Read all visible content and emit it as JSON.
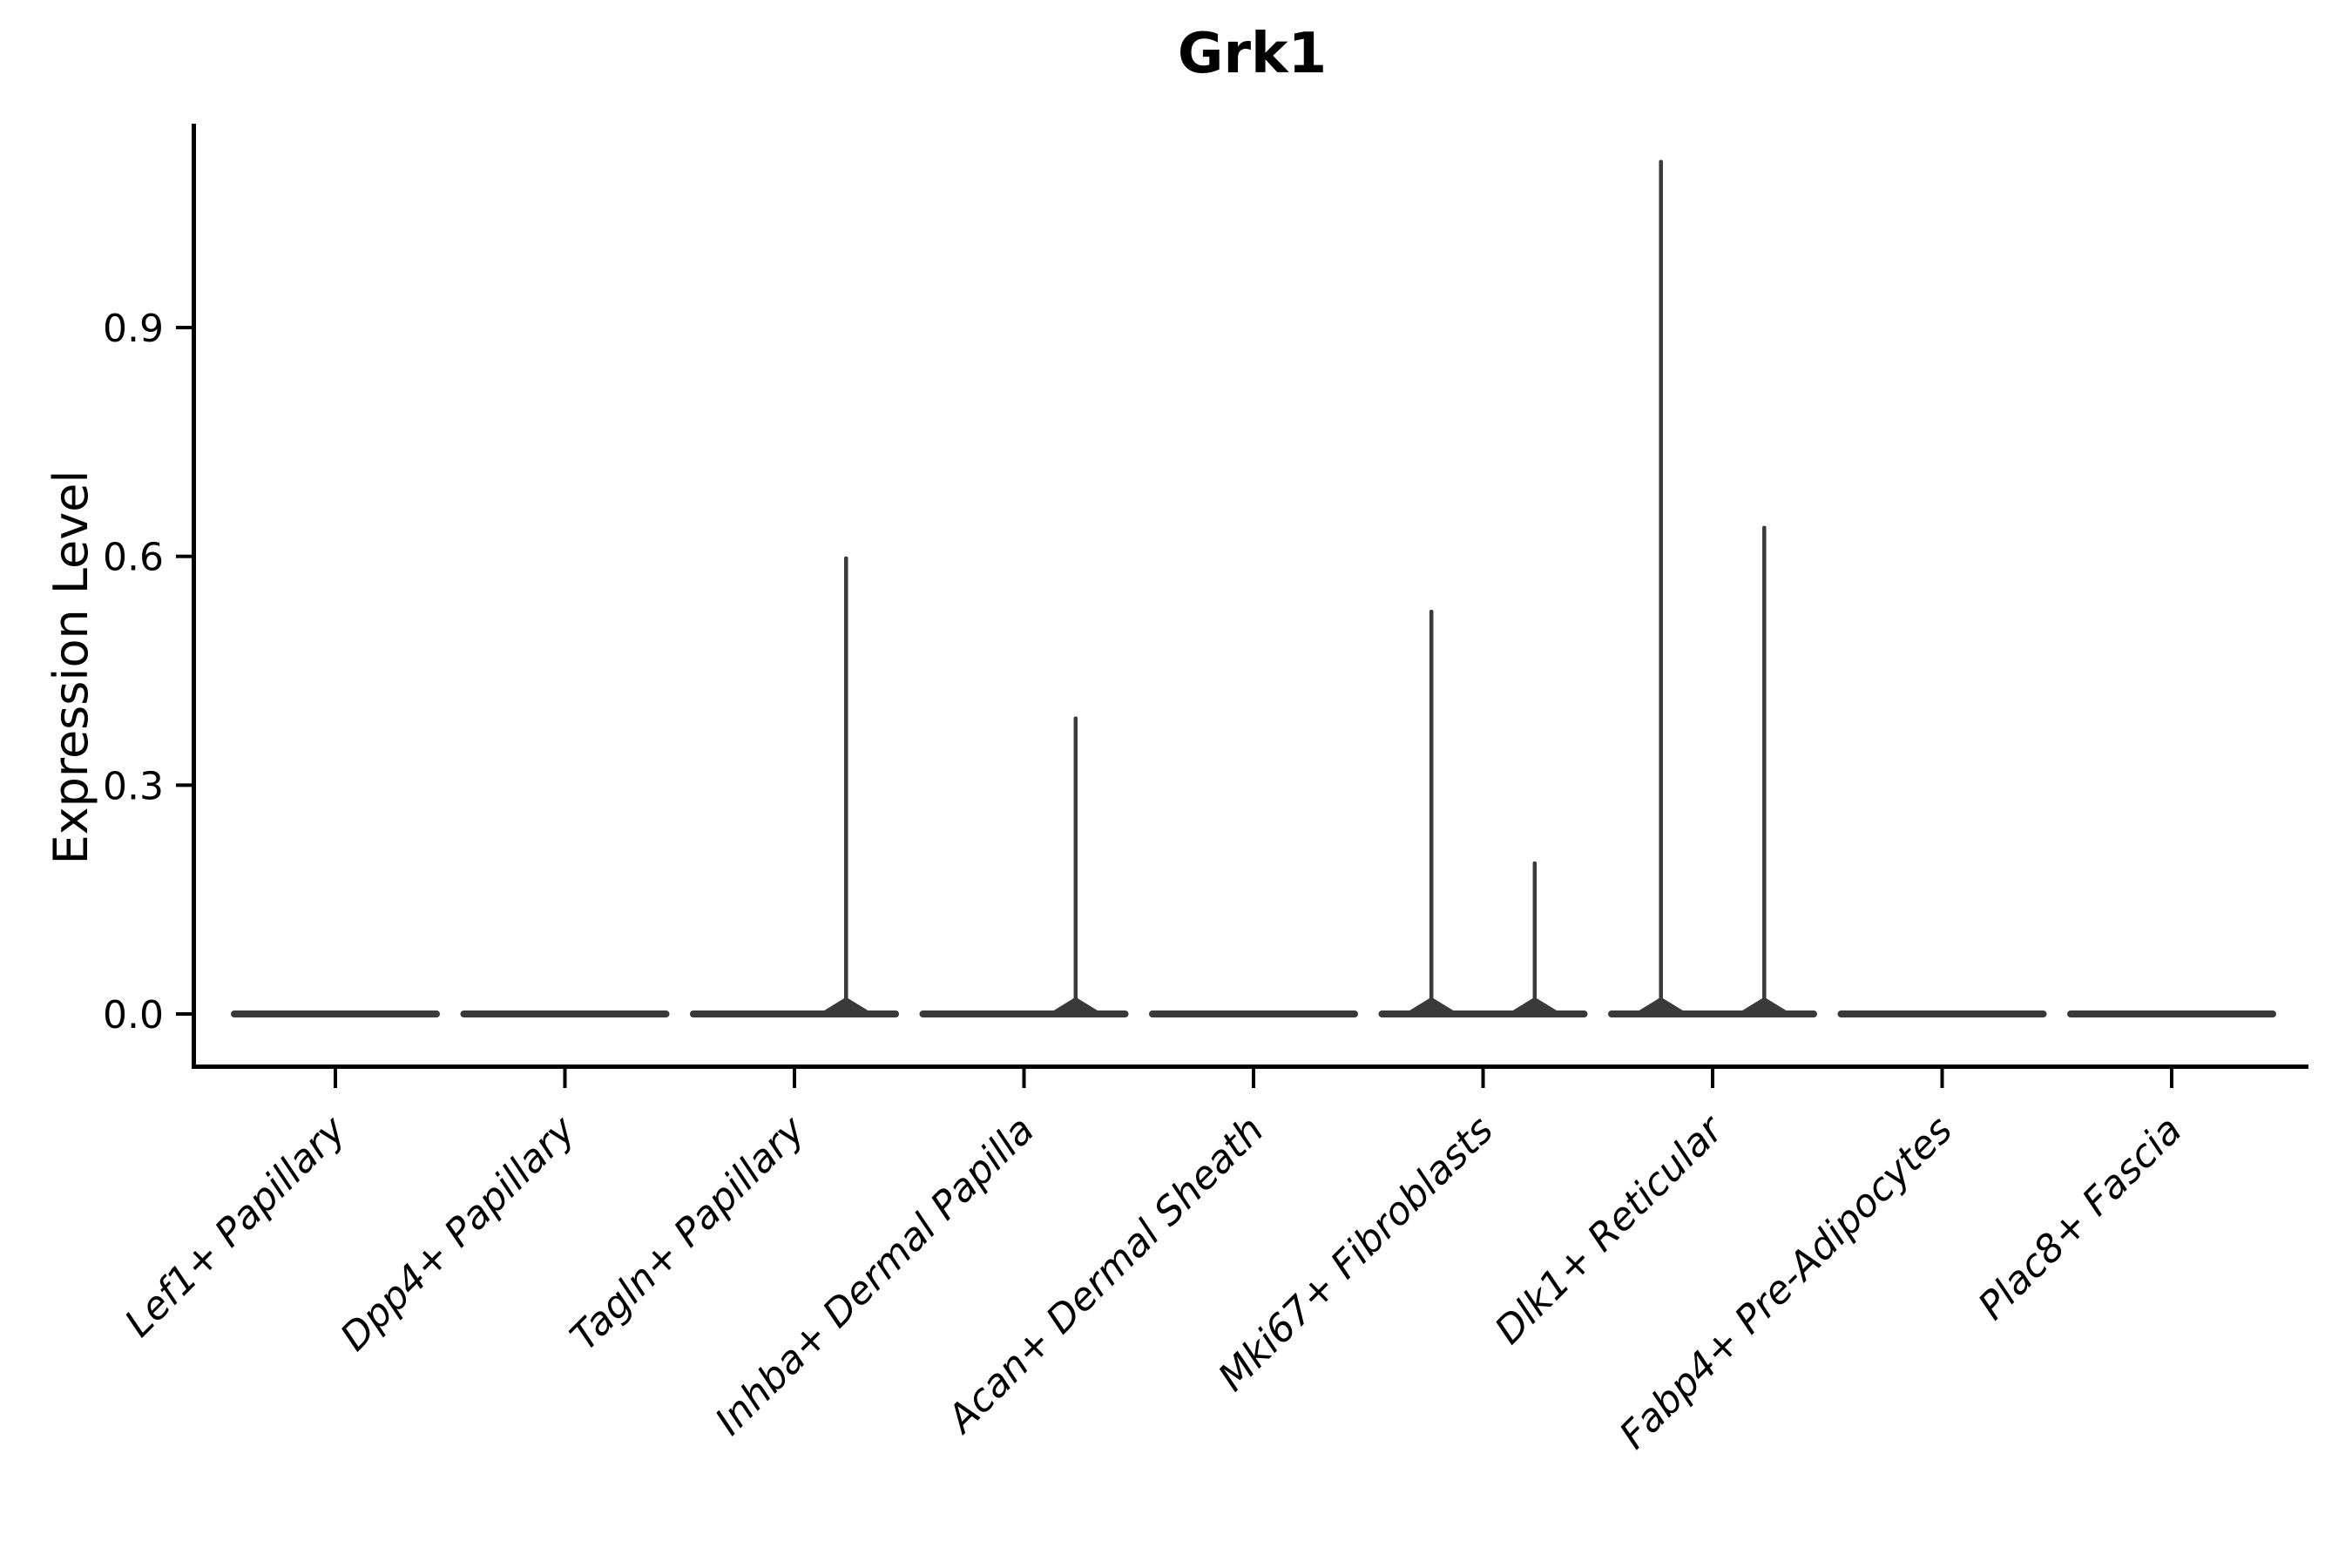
{
  "figure": {
    "title": "Grk1",
    "background_color": "#ffffff"
  },
  "chart_data": {
    "type": "violin",
    "title": "Grk1",
    "xlabel": "",
    "ylabel": "Expression Level",
    "categories": [
      "Lef1+ Papillary",
      "Dpp4+ Papillary",
      "Tagln+ Papillary",
      "Inhba+ Dermal Papilla",
      "Acan+ Dermal Sheath",
      "Mki67+ Fibroblasts",
      "Dlk1+ Reticular",
      "Fabp4+ Pre-Adipocytes",
      "Plac8+ Fascia"
    ],
    "yticks": [
      0.0,
      0.3,
      0.6,
      0.9
    ],
    "ytick_format_decimals": 1,
    "ylim": [
      0,
      1.17
    ],
    "grid": false,
    "legend": "none",
    "x_label_rotation_deg": 45,
    "violin_color": "#3a3a3a",
    "axis_color": "#000000",
    "group_offset_fraction": 0.225,
    "violins": [
      {
        "category": "Lef1+ Papillary",
        "base_value": 0,
        "spikes": []
      },
      {
        "category": "Dpp4+ Papillary",
        "base_value": 0,
        "spikes": []
      },
      {
        "category": "Tagln+ Papillary",
        "base_value": 0,
        "spikes": [
          {
            "offset": 0.225,
            "max": 0.6
          }
        ]
      },
      {
        "category": "Inhba+ Dermal Papilla",
        "base_value": 0,
        "spikes": [
          {
            "offset": 0.225,
            "max": 0.39
          }
        ]
      },
      {
        "category": "Acan+ Dermal Sheath",
        "base_value": 0,
        "spikes": []
      },
      {
        "category": "Mki67+ Fibroblasts",
        "base_value": 0,
        "spikes": [
          {
            "offset": -0.225,
            "max": 0.53
          },
          {
            "offset": 0.225,
            "max": 0.2
          }
        ]
      },
      {
        "category": "Dlk1+ Reticular",
        "base_value": 0,
        "spikes": [
          {
            "offset": -0.225,
            "max": 1.12
          },
          {
            "offset": 0.225,
            "max": 0.64
          }
        ]
      },
      {
        "category": "Fabp4+ Pre-Adipocytes",
        "base_value": 0,
        "spikes": []
      },
      {
        "category": "Plac8+ Fascia",
        "base_value": 0,
        "spikes": []
      }
    ]
  }
}
